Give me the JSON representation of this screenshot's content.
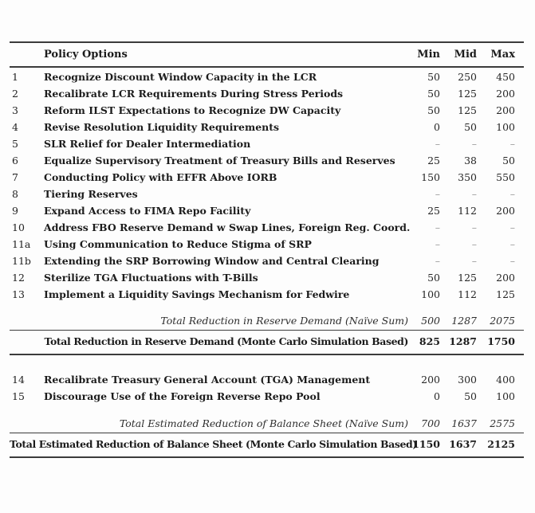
{
  "table": {
    "header": {
      "policy": "Policy Options",
      "min": "Min",
      "mid": "Mid",
      "max": "Max"
    },
    "rows": [
      {
        "id": "1",
        "label": "Recognize Discount Window Capacity in the LCR",
        "min": "50",
        "mid": "250",
        "max": "450"
      },
      {
        "id": "2",
        "label": "Recalibrate LCR Requirements During Stress Periods",
        "min": "50",
        "mid": "125",
        "max": "200"
      },
      {
        "id": "3",
        "label": "Reform ILST Expectations to Recognize DW Capacity",
        "min": "50",
        "mid": "125",
        "max": "200"
      },
      {
        "id": "4",
        "label": "Revise Resolution Liquidity Requirements",
        "min": "0",
        "mid": "50",
        "max": "100"
      },
      {
        "id": "5",
        "label": "SLR Relief for Dealer Intermediation",
        "min": "–",
        "mid": "–",
        "max": "–"
      },
      {
        "id": "6",
        "label": "Equalize Supervisory Treatment of Treasury Bills and Reserves",
        "min": "25",
        "mid": "38",
        "max": "50"
      },
      {
        "id": "7",
        "label": "Conducting Policy with EFFR Above IORB",
        "min": "150",
        "mid": "350",
        "max": "550"
      },
      {
        "id": "8",
        "label": "Tiering Reserves",
        "min": "–",
        "mid": "–",
        "max": "–"
      },
      {
        "id": "9",
        "label": "Expand Access to FIMA Repo Facility",
        "min": "25",
        "mid": "112",
        "max": "200"
      },
      {
        "id": "10",
        "label": "Address FBO Reserve Demand w Swap Lines, Foreign Reg. Coord.",
        "min": "–",
        "mid": "–",
        "max": "–"
      },
      {
        "id": "11a",
        "label": "Using Communication to Reduce Stigma of SRP",
        "min": "–",
        "mid": "–",
        "max": "–"
      },
      {
        "id": "11b",
        "label": "Extending the SRP Borrowing Window and Central Clearing",
        "min": "–",
        "mid": "–",
        "max": "–"
      },
      {
        "id": "12",
        "label": "Sterilize TGA Fluctuations with T-Bills",
        "min": "50",
        "mid": "125",
        "max": "200"
      },
      {
        "id": "13",
        "label": "Implement a Liquidity Savings Mechanism for Fedwire",
        "min": "100",
        "mid": "112",
        "max": "125"
      }
    ],
    "reserve_naive": {
      "label": "Total Reduction in Reserve Demand (Naïve Sum)",
      "min": "500",
      "mid": "1287",
      "max": "2075"
    },
    "reserve_mc": {
      "label": "Total Reduction in Reserve Demand (Monte Carlo Simulation Based)",
      "min": "825",
      "mid": "1287",
      "max": "1750"
    },
    "rows2": [
      {
        "id": "14",
        "label": "Recalibrate Treasury General Account (TGA) Management",
        "min": "200",
        "mid": "300",
        "max": "400"
      },
      {
        "id": "15",
        "label": "Discourage Use of the Foreign Reverse Repo Pool",
        "min": "0",
        "mid": "50",
        "max": "100"
      }
    ],
    "balance_naive": {
      "label": "Total Estimated Reduction of Balance Sheet (Naïve Sum)",
      "min": "700",
      "mid": "1637",
      "max": "2575"
    },
    "balance_mc": {
      "label": "Total Estimated Reduction of Balance Sheet (Monte Carlo Simulation Based)",
      "min": "1150",
      "mid": "1637",
      "max": "2125"
    }
  }
}
